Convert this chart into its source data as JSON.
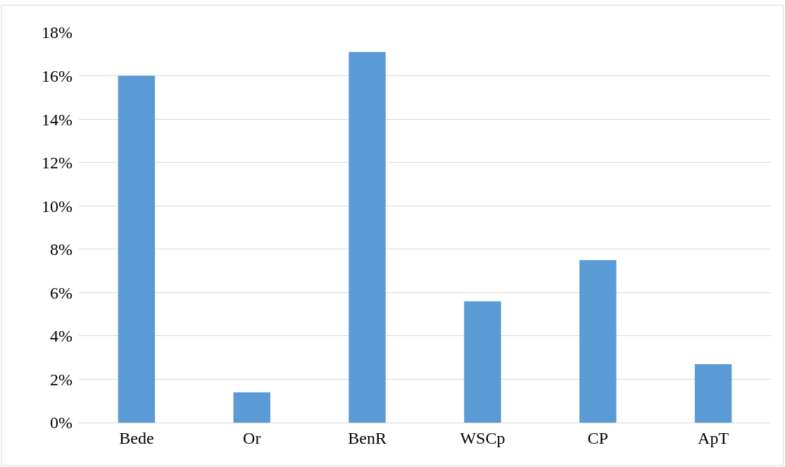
{
  "chart_data": {
    "type": "bar",
    "categories": [
      "Bede",
      "Or",
      "BenR",
      "WSCp",
      "CP",
      "ApT"
    ],
    "values": [
      16,
      1.4,
      17.1,
      5.6,
      7.5,
      2.7
    ],
    "color": "#5b9bd5",
    "ylim": [
      0,
      18
    ],
    "yticks": [
      {
        "value": 0,
        "label": "0%"
      },
      {
        "value": 2,
        "label": "2%"
      },
      {
        "value": 4,
        "label": "4%"
      },
      {
        "value": 6,
        "label": "6%"
      },
      {
        "value": 8,
        "label": "8%"
      },
      {
        "value": 10,
        "label": "10%"
      },
      {
        "value": 12,
        "label": "12%"
      },
      {
        "value": 14,
        "label": "14%"
      },
      {
        "value": 16,
        "label": "16%"
      },
      {
        "value": 18,
        "label": "18%"
      }
    ],
    "grid": "y"
  }
}
